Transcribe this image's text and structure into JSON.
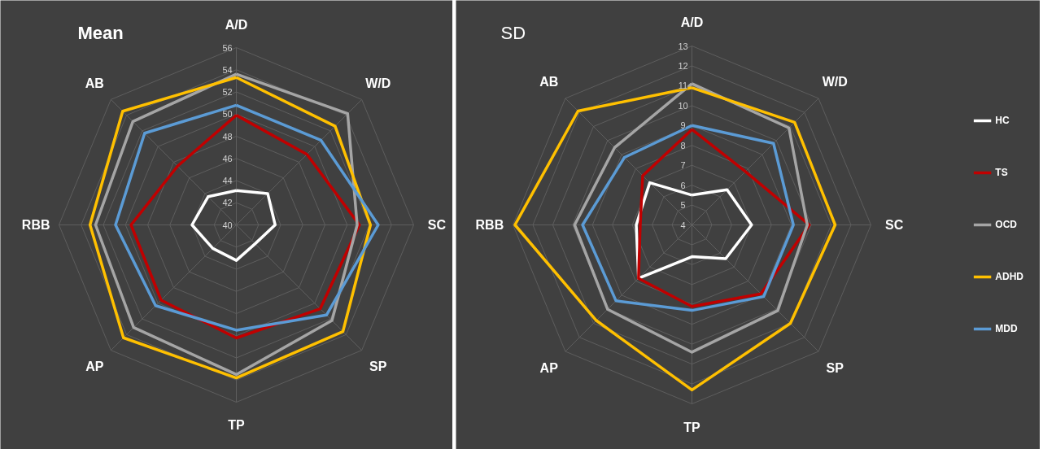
{
  "chart_data": [
    {
      "type": "radar",
      "title": "Mean",
      "categories": [
        "A/D",
        "W/D",
        "SC",
        "SP",
        "TP",
        "AP",
        "RBB",
        "AB"
      ],
      "ylim": [
        40,
        56
      ],
      "yticks": [
        40,
        42,
        44,
        46,
        48,
        50,
        52,
        54,
        56
      ],
      "grid": true,
      "legend": false,
      "series": [
        {
          "color": "#ffffff",
          "values": [
            43.1,
            44.0,
            43.5,
            42.4,
            43.2,
            43.0,
            44.0,
            43.6
          ]
        },
        {
          "color": "#c00000",
          "values": [
            49.9,
            49.0,
            51.1,
            50.7,
            50.2,
            49.6,
            49.5,
            47.5
          ]
        },
        {
          "color": "#a5a5a5",
          "values": [
            53.6,
            54.2,
            50.9,
            52.2,
            53.5,
            53.1,
            52.7,
            53.2
          ]
        },
        {
          "color": "#ffc000",
          "values": [
            53.3,
            52.6,
            52.1,
            53.6,
            53.8,
            54.4,
            53.2,
            54.5
          ]
        },
        {
          "color": "#5b9bd5",
          "values": [
            50.8,
            50.8,
            52.8,
            51.5,
            49.5,
            50.3,
            50.9,
            51.7
          ]
        }
      ]
    },
    {
      "type": "radar",
      "title": "SD",
      "categories": [
        "A/D",
        "W/D",
        "SC",
        "SP",
        "TP",
        "AP",
        "RBB",
        "AB"
      ],
      "ylim": [
        4,
        13
      ],
      "yticks": [
        4,
        5,
        6,
        7,
        8,
        9,
        10,
        11,
        12,
        13
      ],
      "grid": true,
      "legend": "right",
      "series": [
        {
          "name": "HC",
          "color": "#ffffff",
          "values": [
            5.5,
            6.5,
            7.0,
            6.4,
            5.6,
            7.8,
            6.8,
            7.0
          ]
        },
        {
          "name": "TS",
          "color": "#c00000",
          "values": [
            8.8,
            7.8,
            9.9,
            8.9,
            8.1,
            7.8,
            6.6,
            7.5
          ]
        },
        {
          "name": "OCD",
          "color": "#a5a5a5",
          "values": [
            11.1,
            10.9,
            9.8,
            10.1,
            10.4,
            10.0,
            9.9,
            9.5
          ]
        },
        {
          "name": "ADHD",
          "color": "#ffc000",
          "values": [
            10.9,
            11.3,
            11.2,
            11.0,
            12.3,
            10.8,
            12.9,
            12.1
          ]
        },
        {
          "name": "MDD",
          "color": "#5b9bd5",
          "values": [
            9.0,
            9.8,
            9.1,
            9.1,
            8.3,
            9.4,
            9.5,
            8.8
          ]
        }
      ]
    }
  ]
}
